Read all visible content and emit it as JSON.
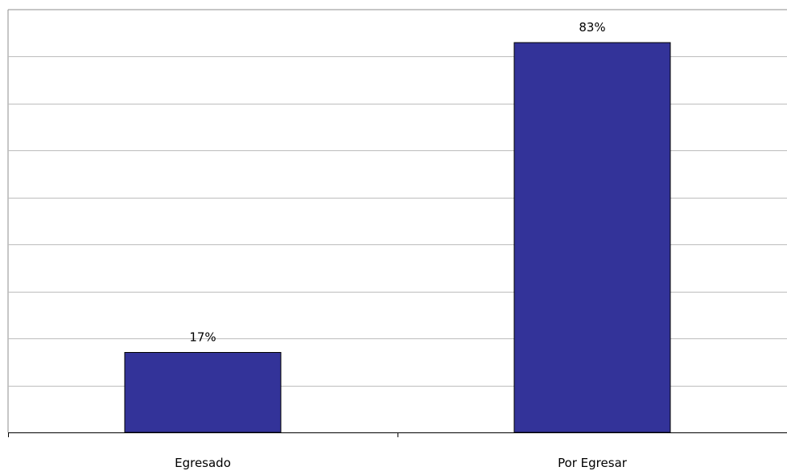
{
  "chart_data": {
    "type": "bar",
    "categories": [
      "Egresado",
      "Por Egresar"
    ],
    "values": [
      17,
      83
    ],
    "data_labels": [
      "17%",
      "83%"
    ],
    "title": "",
    "xlabel": "",
    "ylabel": "",
    "ylim": [
      0,
      90
    ],
    "grid": true,
    "grid_step": 10,
    "legend": "none",
    "bar_color": "#333399"
  }
}
